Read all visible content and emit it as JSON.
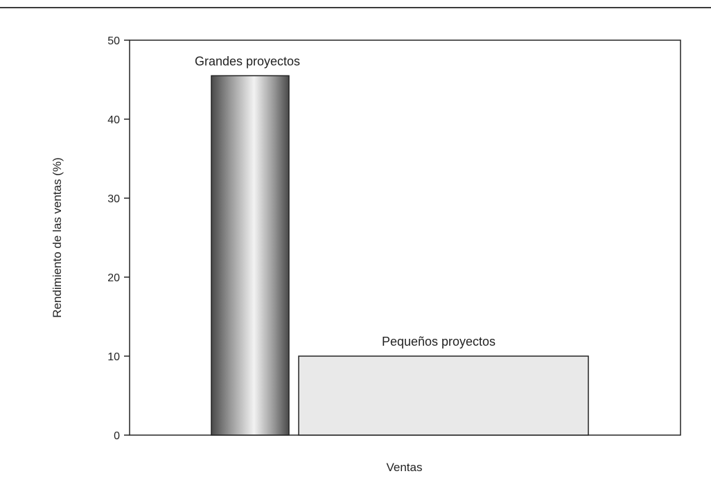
{
  "chart_data": {
    "type": "bar",
    "xlabel": "Ventas",
    "ylabel": "Rendimiento de las ventas (%)",
    "ylim": [
      0,
      50
    ],
    "yticks": [
      0,
      10,
      20,
      30,
      40,
      50
    ],
    "grid": false,
    "categories": [
      "Grandes proyectos",
      "Pequeños proyectos"
    ],
    "values": [
      45.5,
      10
    ],
    "bar_styles": [
      "gradient-gray",
      "light-gray"
    ],
    "colors": {
      "bar_light": "#e9e9e9",
      "bar_dark": "#5a5a5a",
      "bar_highlight": "#f2f2f2",
      "axis": "#222222"
    }
  }
}
